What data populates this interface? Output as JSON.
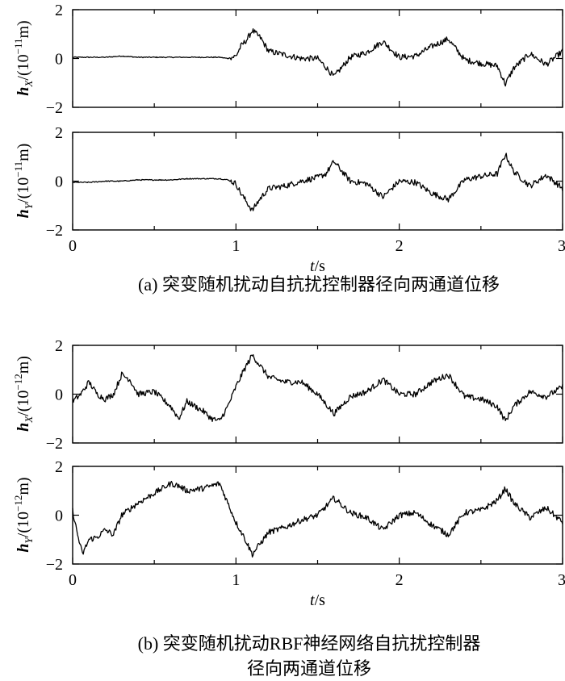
{
  "chart_data": [
    {
      "type": "line",
      "ylabel_main": "h",
      "ylabel_sub": "X",
      "ylabel_unit_prefix": "/(10",
      "ylabel_exp": "−11",
      "ylabel_unit_suffix": "m)",
      "ylim": [
        -2,
        2
      ],
      "xlim": [
        0,
        3
      ],
      "yticks": [
        "2",
        "0",
        "−2"
      ],
      "xticks": [],
      "xlabel": "",
      "x": [
        0,
        0.1,
        0.2,
        0.3,
        0.4,
        0.5,
        0.6,
        0.7,
        0.8,
        0.9,
        0.95,
        1.0,
        1.03,
        1.07,
        1.1,
        1.15,
        1.2,
        1.3,
        1.4,
        1.5,
        1.55,
        1.6,
        1.7,
        1.8,
        1.9,
        2.0,
        2.1,
        2.2,
        2.3,
        2.4,
        2.5,
        2.6,
        2.65,
        2.7,
        2.8,
        2.9,
        3.0
      ],
      "y": [
        0.05,
        0.05,
        0.05,
        0.1,
        0.05,
        0.05,
        0.05,
        0.05,
        0.05,
        0.05,
        0.0,
        0.1,
        0.5,
        0.8,
        1.15,
        0.85,
        0.3,
        0.15,
        0.0,
        0.0,
        -0.35,
        -0.75,
        0.05,
        0.25,
        0.7,
        0.05,
        0.1,
        0.5,
        0.8,
        -0.05,
        -0.2,
        -0.3,
        -1.05,
        -0.4,
        0.2,
        -0.25,
        0.3
      ]
    },
    {
      "type": "line",
      "ylabel_main": "h",
      "ylabel_sub": "Y",
      "ylabel_unit_prefix": "/(10",
      "ylabel_exp": "−11",
      "ylabel_unit_suffix": "m)",
      "ylim": [
        -2,
        2
      ],
      "xlim": [
        0,
        3
      ],
      "yticks": [
        "2",
        "0",
        "−2"
      ],
      "xticks": [
        "0",
        "1",
        "2",
        "3"
      ],
      "xlabel_main": "t",
      "xlabel_rest": "/s",
      "x": [
        0,
        0.1,
        0.2,
        0.3,
        0.4,
        0.5,
        0.6,
        0.7,
        0.8,
        0.9,
        0.95,
        1.0,
        1.03,
        1.07,
        1.1,
        1.15,
        1.2,
        1.3,
        1.4,
        1.5,
        1.55,
        1.6,
        1.7,
        1.8,
        1.9,
        2.0,
        2.1,
        2.2,
        2.3,
        2.4,
        2.5,
        2.6,
        2.65,
        2.7,
        2.8,
        2.9,
        3.0
      ],
      "y": [
        -0.05,
        -0.05,
        0.0,
        0.0,
        0.05,
        0.05,
        0.05,
        0.1,
        0.1,
        0.1,
        0.05,
        -0.1,
        -0.5,
        -0.9,
        -1.2,
        -0.7,
        -0.3,
        -0.2,
        0.0,
        0.15,
        0.3,
        0.8,
        0.0,
        -0.1,
        -0.65,
        0.0,
        -0.05,
        -0.5,
        -0.75,
        0.05,
        0.2,
        0.3,
        1.1,
        0.4,
        -0.2,
        0.25,
        -0.3
      ]
    },
    {
      "type": "line",
      "ylabel_main": "h",
      "ylabel_sub": "X",
      "ylabel_unit_prefix": "/(10",
      "ylabel_exp": "−12",
      "ylabel_unit_suffix": "m)",
      "ylim": [
        -2,
        2
      ],
      "xlim": [
        0,
        3
      ],
      "yticks": [
        "2",
        "0",
        "−2"
      ],
      "xticks": [],
      "xlabel": "",
      "x": [
        0,
        0.05,
        0.1,
        0.15,
        0.2,
        0.25,
        0.3,
        0.35,
        0.4,
        0.5,
        0.6,
        0.65,
        0.7,
        0.8,
        0.85,
        0.9,
        0.95,
        1.0,
        1.05,
        1.1,
        1.2,
        1.3,
        1.4,
        1.5,
        1.6,
        1.7,
        1.8,
        1.9,
        2.0,
        2.1,
        2.2,
        2.3,
        2.4,
        2.5,
        2.6,
        2.65,
        2.7,
        2.8,
        2.9,
        3.0
      ],
      "y": [
        -0.3,
        0.0,
        0.5,
        0.0,
        -0.2,
        0.0,
        0.8,
        0.6,
        0.0,
        0.1,
        -0.5,
        -1.0,
        -0.3,
        -0.7,
        -1.0,
        -1.1,
        -0.5,
        0.3,
        1.0,
        1.6,
        0.7,
        0.5,
        0.5,
        0.0,
        -0.8,
        -0.1,
        0.1,
        0.6,
        0.0,
        0.0,
        0.5,
        0.8,
        -0.1,
        -0.2,
        -0.5,
        -1.1,
        -0.5,
        0.1,
        -0.1,
        0.3
      ]
    },
    {
      "type": "line",
      "ylabel_main": "h",
      "ylabel_sub": "Y",
      "ylabel_unit_prefix": "/(10",
      "ylabel_exp": "−12",
      "ylabel_unit_suffix": "m)",
      "ylim": [
        -2,
        2
      ],
      "xlim": [
        0,
        3
      ],
      "yticks": [
        "2",
        "0",
        "−2"
      ],
      "xticks": [
        "0",
        "1",
        "2",
        "3"
      ],
      "xlabel_main": "t",
      "xlabel_rest": "/s",
      "x": [
        0,
        0.03,
        0.06,
        0.1,
        0.15,
        0.2,
        0.25,
        0.3,
        0.4,
        0.5,
        0.6,
        0.65,
        0.7,
        0.8,
        0.85,
        0.9,
        0.95,
        1.0,
        1.05,
        1.1,
        1.2,
        1.3,
        1.4,
        1.5,
        1.6,
        1.7,
        1.8,
        1.9,
        2.0,
        2.1,
        2.2,
        2.3,
        2.4,
        2.5,
        2.6,
        2.65,
        2.7,
        2.8,
        2.9,
        3.0
      ],
      "y": [
        0.2,
        -0.8,
        -1.6,
        -1.0,
        -0.9,
        -0.6,
        -0.8,
        0.0,
        0.5,
        0.9,
        1.3,
        1.2,
        1.0,
        1.1,
        1.2,
        1.3,
        0.5,
        -0.3,
        -0.9,
        -1.6,
        -0.7,
        -0.5,
        -0.2,
        0.0,
        0.7,
        0.1,
        -0.1,
        -0.6,
        0.0,
        0.1,
        -0.4,
        -0.8,
        0.1,
        0.2,
        0.6,
        1.1,
        0.5,
        -0.1,
        0.3,
        -0.3
      ]
    }
  ],
  "captions": {
    "a": "(a) 突变随机扰动自抗扰控制器径向两通道位移",
    "b_line1": "(b) 突变随机扰动RBF神经网络自抗扰控制器",
    "b_line2": "径向两通道位移"
  }
}
